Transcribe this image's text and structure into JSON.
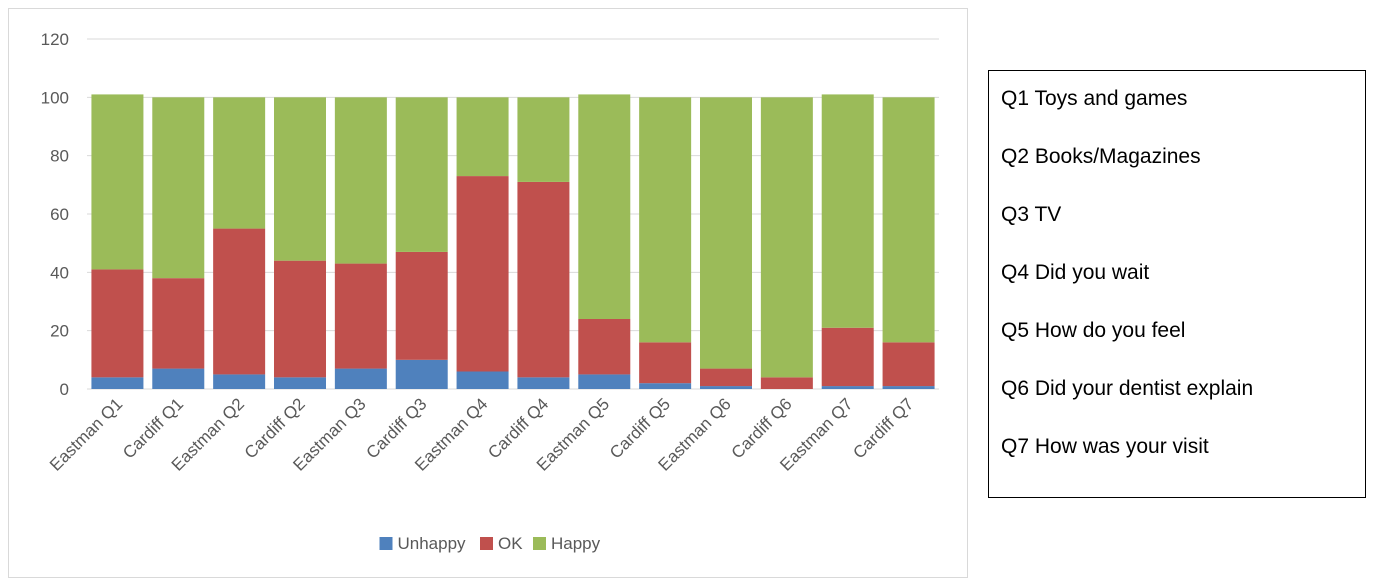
{
  "chart_data": {
    "type": "bar",
    "stacked": true,
    "categories": [
      "Eastman Q1",
      "Cardiff Q1",
      "Eastman Q2",
      "Cardiff Q2",
      "Eastman Q3",
      "Cardiff Q3",
      "Eastman Q4",
      "Cardiff Q4",
      "Eastman Q5",
      "Cardiff Q5",
      "Eastman Q6",
      "Cardiff Q6",
      "Eastman Q7",
      "Cardiff Q7"
    ],
    "series": [
      {
        "name": "Unhappy",
        "color": "#4f81bd",
        "values": [
          4,
          7,
          5,
          4,
          7,
          10,
          6,
          4,
          5,
          2,
          1,
          0,
          1,
          1
        ]
      },
      {
        "name": "OK",
        "color": "#c0504d",
        "values": [
          37,
          31,
          50,
          40,
          36,
          37,
          67,
          67,
          19,
          14,
          6,
          4,
          20,
          15
        ]
      },
      {
        "name": "Happy",
        "color": "#9bbb59",
        "values": [
          60,
          62,
          45,
          56,
          57,
          53,
          27,
          29,
          77,
          84,
          93,
          96,
          80,
          84
        ]
      }
    ],
    "ylim": [
      0,
      120
    ],
    "yticks": [
      0,
      20,
      40,
      60,
      80,
      100,
      120
    ],
    "grid": true,
    "legend_position": "bottom",
    "title": "",
    "xlabel": "",
    "ylabel": ""
  },
  "question_key": [
    "Q1 Toys and games",
    "Q2 Books/Magazines",
    "Q3 TV",
    "Q4 Did you wait",
    "Q5 How do you feel",
    "Q6 Did your dentist explain",
    "Q7 How was your visit"
  ]
}
